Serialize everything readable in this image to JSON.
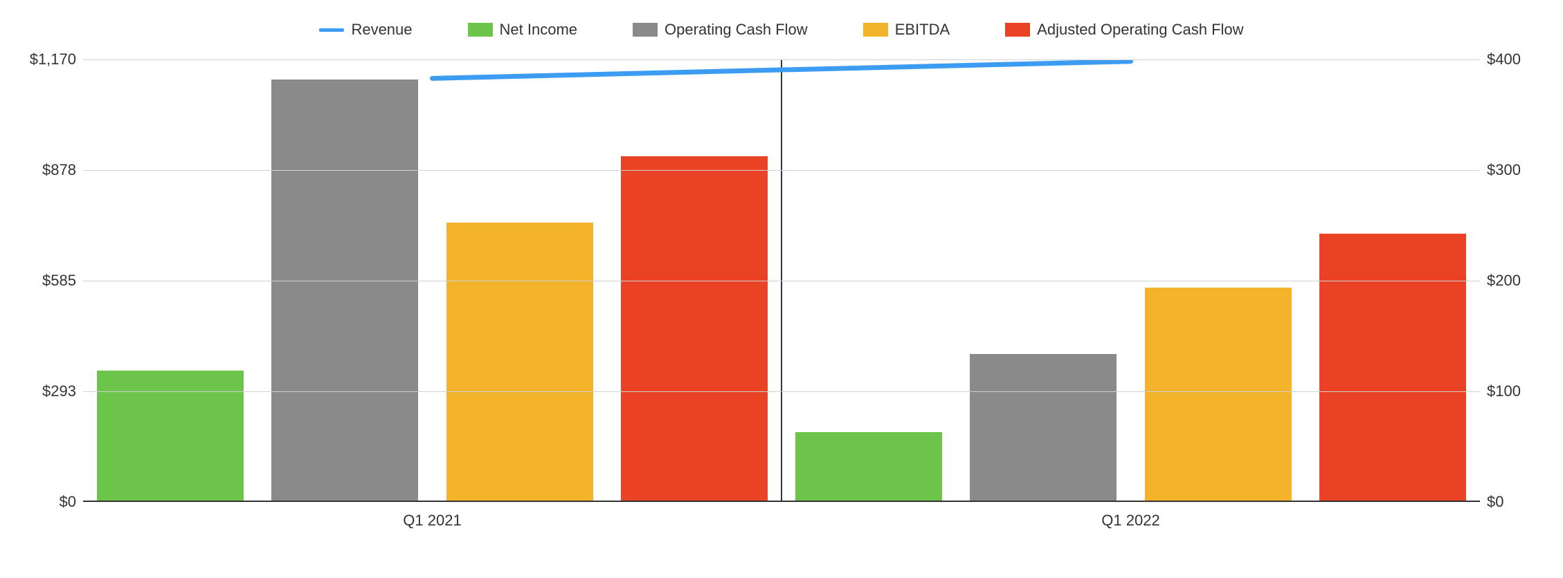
{
  "chart": {
    "type": "bar+line",
    "background_color": "#ffffff",
    "grid_color": "#d0d0d0",
    "axis_color": "#333333",
    "text_color": "#333333",
    "label_fontsize": 22,
    "categories": [
      "Q1 2021",
      "Q1 2022"
    ],
    "left_axis": {
      "min": 0,
      "max": 1170,
      "tick_step": 292.5,
      "ticks": [
        "$0",
        "$293",
        "$585",
        "$878",
        "$1,170"
      ]
    },
    "right_axis": {
      "min": 0,
      "max": 400,
      "tick_step": 100,
      "ticks": [
        "$0",
        "$100",
        "$200",
        "$300",
        "$400"
      ]
    },
    "series": {
      "revenue": {
        "label": "Revenue",
        "type": "line",
        "color": "#3b9cf2",
        "line_width": 7,
        "axis": "left",
        "values": [
          1120,
          1165
        ]
      },
      "net_income": {
        "label": "Net Income",
        "type": "bar",
        "color": "#6dc44b",
        "axis": "right",
        "values": [
          118,
          62
        ]
      },
      "operating_cash_flow": {
        "label": "Operating Cash Flow",
        "type": "bar",
        "color": "#8a8a8a",
        "axis": "right",
        "values": [
          382,
          133
        ]
      },
      "ebitda": {
        "label": "EBITDA",
        "type": "bar",
        "color": "#f3b42c",
        "axis": "right",
        "values": [
          252,
          193
        ]
      },
      "adjusted_ocf": {
        "label": "Adjusted Operating Cash Flow",
        "type": "bar",
        "color": "#ea4225",
        "axis": "right",
        "values": [
          312,
          242
        ]
      }
    },
    "legend_order": [
      "revenue",
      "net_income",
      "operating_cash_flow",
      "ebitda",
      "adjusted_ocf"
    ],
    "bar_width_pct": 10.5,
    "group_gap_pct": 2.0
  }
}
